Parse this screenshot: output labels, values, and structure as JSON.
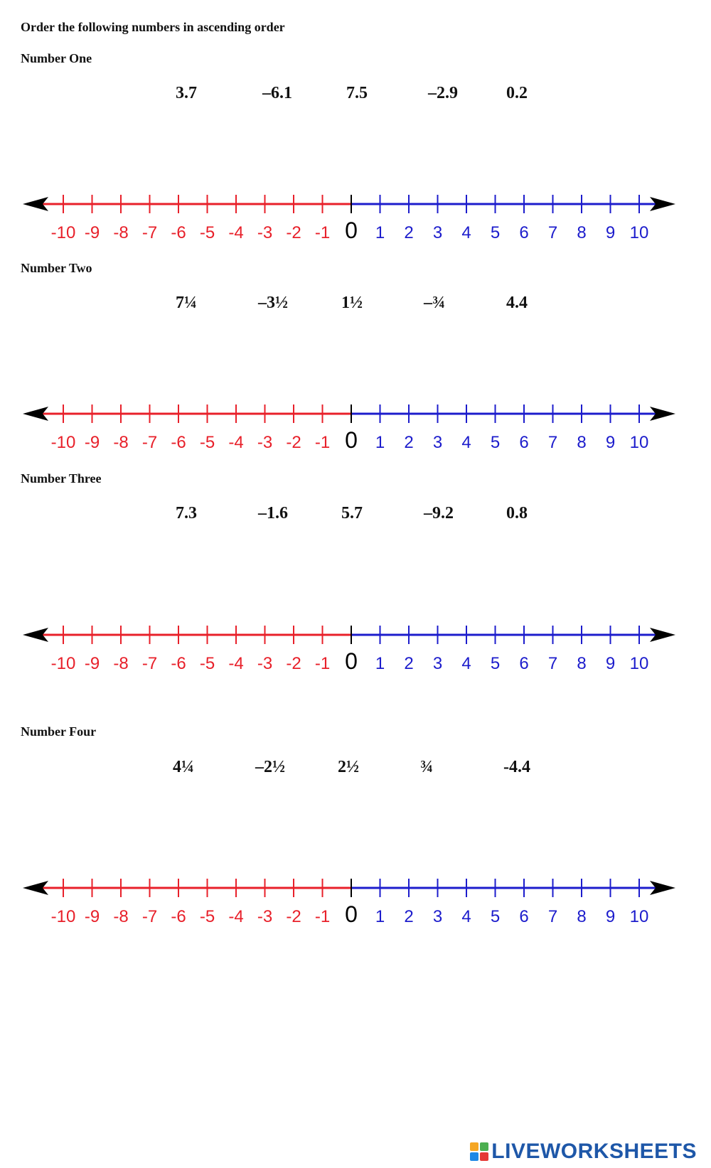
{
  "instruction": "Order the following numbers in ascending order",
  "problems": [
    {
      "label": "Number One",
      "values": [
        "3.7",
        "–6.1",
        "7.5",
        "–2.9",
        "0.2"
      ]
    },
    {
      "label": "Number Two",
      "values": [
        "7¼",
        "–3½",
        "1½",
        "–¾",
        "4.4"
      ]
    },
    {
      "label": "Number Three",
      "values": [
        "7.3",
        "–1.6",
        "5.7",
        "–9.2",
        "0.8"
      ]
    },
    {
      "label": "Number Four",
      "values": [
        "4¼",
        "–2½",
        "2½",
        "¾",
        "-4.4"
      ]
    }
  ],
  "number_line": {
    "min": -10,
    "max": 10,
    "labels": [
      "-10",
      "-9",
      "-8",
      "-7",
      "-6",
      "-5",
      "-4",
      "-3",
      "-2",
      "-1",
      "0",
      "1",
      "2",
      "3",
      "4",
      "5",
      "6",
      "7",
      "8",
      "9",
      "10"
    ],
    "negative_color": "#e8202a",
    "positive_color": "#1c1ccc",
    "zero_color": "#000000"
  },
  "footer": {
    "brand": "LIVEWORKSHEETS"
  }
}
